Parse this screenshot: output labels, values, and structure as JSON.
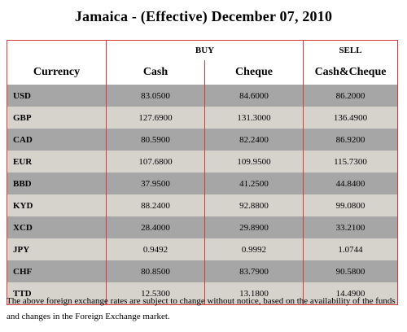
{
  "title": "Jamaica - (Effective) December 07, 2010",
  "table": {
    "group_headers": {
      "buy": "BUY",
      "sell": "SELL"
    },
    "column_headers": [
      "Currency",
      "Cash",
      "Cheque",
      "Cash&Cheque"
    ],
    "rows": [
      {
        "code": "USD",
        "cash": "83.0500",
        "cheque": "84.6000",
        "sell": "86.2000"
      },
      {
        "code": "GBP",
        "cash": "127.6900",
        "cheque": "131.3000",
        "sell": "136.4900"
      },
      {
        "code": "CAD",
        "cash": "80.5900",
        "cheque": "82.2400",
        "sell": "86.9200"
      },
      {
        "code": "EUR",
        "cash": "107.6800",
        "cheque": "109.9500",
        "sell": "115.7300"
      },
      {
        "code": "BBD",
        "cash": "37.9500",
        "cheque": "41.2500",
        "sell": "44.8400"
      },
      {
        "code": "KYD",
        "cash": "88.2400",
        "cheque": "92.8800",
        "sell": "99.0800"
      },
      {
        "code": "XCD",
        "cash": "28.4000",
        "cheque": "29.8900",
        "sell": "33.2100"
      },
      {
        "code": "JPY",
        "cash": "0.9492",
        "cheque": "0.9992",
        "sell": "1.0744"
      },
      {
        "code": "CHF",
        "cash": "80.8500",
        "cheque": "83.7900",
        "sell": "90.5800"
      },
      {
        "code": "TTD",
        "cash": "12.5300",
        "cheque": "13.1800",
        "sell": "14.4900"
      }
    ]
  },
  "footnote": "The above foreign exchange rates are subject to change without notice, based on the availability of the funds and changes in the Foreign Exchange market.",
  "colors": {
    "row_dark": "#a7a6a6",
    "row_light": "#d6d3cd",
    "divider": "#d43a3a"
  }
}
